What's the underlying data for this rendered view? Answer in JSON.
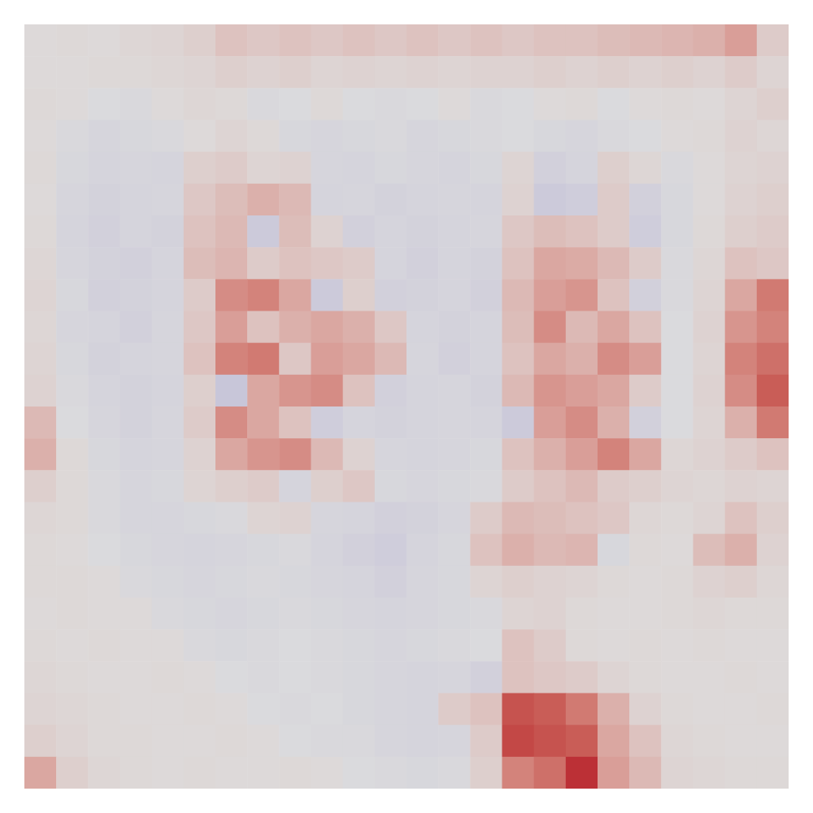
{
  "chart_data": {
    "type": "heatmap",
    "tick_labels": false,
    "color_range": [
      -1,
      1
    ],
    "cells": [
      [
        0.02,
        0.03,
        0.02,
        0.04,
        0.05,
        0.08,
        0.15,
        0.12,
        0.15,
        0.12,
        0.15,
        0.12,
        0.15,
        0.12,
        0.15,
        0.12,
        0.15,
        0.15,
        0.18,
        0.2,
        0.22,
        0.25,
        0.35,
        0.1
      ],
      [
        0.02,
        0.02,
        0.03,
        0.03,
        0.04,
        0.05,
        0.08,
        0.06,
        0.08,
        0.05,
        0.06,
        0.05,
        0.06,
        0.05,
        0.06,
        0.06,
        0.08,
        0.06,
        0.08,
        0.06,
        0.08,
        0.06,
        0.1,
        0.05
      ],
      [
        0.03,
        0.02,
        -0.02,
        -0.03,
        0.02,
        0.04,
        0.03,
        -0.03,
        -0.02,
        0.03,
        -0.02,
        -0.03,
        -0.02,
        0.02,
        -0.03,
        -0.02,
        0.02,
        0.03,
        -0.02,
        0.02,
        0.03,
        0.02,
        0.05,
        0.08
      ],
      [
        0.02,
        -0.03,
        -0.05,
        -0.04,
        -0.03,
        0.02,
        0.05,
        0.03,
        -0.04,
        -0.05,
        -0.04,
        -0.03,
        -0.05,
        -0.04,
        -0.03,
        -0.02,
        -0.04,
        -0.05,
        -0.03,
        -0.02,
        0.02,
        0.03,
        0.06,
        0.04
      ],
      [
        0.03,
        -0.04,
        -0.06,
        -0.05,
        -0.06,
        0.08,
        0.1,
        0.05,
        0.06,
        -0.05,
        -0.06,
        -0.04,
        -0.05,
        -0.06,
        -0.04,
        0.05,
        -0.08,
        -0.06,
        0.08,
        0.04,
        -0.03,
        0.02,
        0.05,
        0.06
      ],
      [
        0.02,
        -0.05,
        -0.07,
        -0.06,
        -0.05,
        0.12,
        0.18,
        0.25,
        0.2,
        -0.06,
        -0.05,
        -0.07,
        -0.06,
        -0.05,
        -0.06,
        0.06,
        -0.12,
        -0.1,
        0.1,
        -0.08,
        -0.04,
        0.02,
        0.06,
        0.08
      ],
      [
        0.03,
        -0.06,
        -0.08,
        -0.06,
        -0.07,
        0.15,
        0.2,
        -0.12,
        0.18,
        0.06,
        -0.08,
        -0.06,
        -0.07,
        -0.06,
        -0.05,
        0.12,
        0.18,
        0.15,
        0.1,
        -0.1,
        -0.04,
        0.03,
        0.08,
        0.1
      ],
      [
        0.04,
        -0.05,
        -0.07,
        -0.08,
        -0.06,
        0.18,
        0.22,
        0.1,
        0.15,
        0.12,
        0.1,
        -0.06,
        -0.08,
        -0.06,
        -0.07,
        0.15,
        0.3,
        0.28,
        0.2,
        0.1,
        -0.03,
        0.04,
        0.15,
        0.12
      ],
      [
        0.05,
        -0.04,
        -0.08,
        -0.07,
        -0.06,
        0.1,
        0.45,
        0.5,
        0.3,
        -0.12,
        0.08,
        -0.08,
        -0.07,
        -0.06,
        -0.08,
        0.2,
        0.35,
        0.4,
        0.15,
        -0.08,
        -0.03,
        0.05,
        0.3,
        0.55
      ],
      [
        0.04,
        -0.05,
        -0.06,
        -0.08,
        -0.05,
        0.12,
        0.35,
        0.15,
        0.25,
        0.3,
        0.25,
        0.12,
        -0.06,
        -0.07,
        -0.06,
        0.18,
        0.45,
        0.2,
        0.3,
        0.15,
        -0.02,
        0.06,
        0.4,
        0.5
      ],
      [
        0.05,
        -0.04,
        -0.07,
        -0.06,
        -0.05,
        0.15,
        0.5,
        0.55,
        0.12,
        0.35,
        0.3,
        0.2,
        -0.05,
        -0.08,
        -0.06,
        0.15,
        0.3,
        0.25,
        0.45,
        0.35,
        -0.02,
        0.05,
        0.5,
        0.6
      ],
      [
        0.06,
        -0.03,
        -0.06,
        -0.07,
        -0.06,
        0.08,
        -0.15,
        0.3,
        0.4,
        0.45,
        0.15,
        -0.08,
        -0.06,
        -0.05,
        -0.07,
        0.2,
        0.4,
        0.35,
        0.3,
        0.1,
        -0.02,
        0.06,
        0.45,
        0.7
      ],
      [
        0.2,
        -0.02,
        -0.05,
        -0.07,
        -0.05,
        0.1,
        0.45,
        0.3,
        0.15,
        -0.1,
        -0.06,
        -0.07,
        -0.06,
        -0.05,
        -0.06,
        -0.12,
        0.35,
        0.45,
        0.25,
        -0.08,
        -0.02,
        0.05,
        0.25,
        0.55
      ],
      [
        0.25,
        0.03,
        -0.04,
        -0.06,
        -0.05,
        0.06,
        0.3,
        0.4,
        0.45,
        0.2,
        0.06,
        -0.05,
        -0.06,
        -0.05,
        -0.04,
        0.15,
        0.25,
        0.35,
        0.5,
        0.3,
        0.04,
        0.06,
        0.1,
        0.15
      ],
      [
        0.08,
        0.03,
        -0.03,
        -0.05,
        -0.04,
        0.05,
        0.08,
        0.1,
        -0.06,
        0.08,
        0.12,
        -0.04,
        -0.05,
        -0.04,
        -0.03,
        0.1,
        0.15,
        0.2,
        0.1,
        0.08,
        0.05,
        0.04,
        0.06,
        0.05
      ],
      [
        0.04,
        0.03,
        -0.03,
        -0.05,
        -0.05,
        -0.04,
        -0.03,
        0.05,
        0.06,
        -0.05,
        -0.06,
        -0.08,
        -0.07,
        -0.05,
        0.1,
        0.2,
        0.18,
        0.15,
        0.12,
        0.04,
        0.03,
        0.05,
        0.15,
        0.08
      ],
      [
        0.03,
        0.02,
        -0.02,
        -0.04,
        -0.05,
        -0.06,
        -0.05,
        -0.04,
        -0.03,
        -0.06,
        -0.08,
        -0.1,
        -0.06,
        -0.04,
        0.15,
        0.25,
        0.2,
        0.22,
        -0.04,
        0.03,
        0.02,
        0.18,
        0.25,
        0.06
      ],
      [
        0.03,
        0.03,
        0.02,
        -0.03,
        -0.04,
        -0.05,
        -0.04,
        -0.03,
        -0.04,
        -0.05,
        -0.06,
        -0.08,
        -0.05,
        -0.04,
        0.05,
        0.08,
        0.06,
        0.05,
        0.03,
        0.02,
        0.03,
        0.06,
        0.08,
        0.04
      ],
      [
        0.02,
        0.03,
        0.02,
        0.02,
        -0.03,
        -0.04,
        -0.05,
        -0.04,
        -0.03,
        -0.04,
        -0.05,
        -0.06,
        -0.05,
        -0.04,
        -0.03,
        0.05,
        0.06,
        0.03,
        0.02,
        0.02,
        0.03,
        0.04,
        0.03,
        0.03
      ],
      [
        0.03,
        0.02,
        0.03,
        0.02,
        0.02,
        -0.03,
        -0.04,
        -0.03,
        -0.02,
        -0.03,
        -0.04,
        -0.05,
        -0.04,
        -0.03,
        -0.02,
        0.15,
        0.1,
        0.03,
        0.02,
        0.03,
        0.02,
        0.03,
        0.02,
        0.02
      ],
      [
        0.04,
        0.03,
        0.02,
        0.02,
        0.03,
        0.02,
        -0.02,
        -0.03,
        -0.02,
        -0.03,
        -0.04,
        -0.05,
        -0.06,
        -0.05,
        -0.08,
        0.15,
        0.12,
        0.1,
        0.05,
        0.03,
        0.02,
        0.02,
        0.03,
        0.02
      ],
      [
        0.05,
        0.04,
        0.03,
        0.02,
        0.02,
        0.03,
        0.02,
        -0.02,
        -0.03,
        -0.02,
        -0.04,
        -0.05,
        -0.06,
        0.1,
        0.15,
        0.75,
        0.7,
        0.55,
        0.25,
        0.06,
        0.03,
        0.02,
        0.02,
        0.03
      ],
      [
        0.08,
        0.05,
        0.03,
        0.03,
        0.02,
        0.02,
        0.03,
        0.02,
        -0.02,
        -0.03,
        -0.03,
        -0.05,
        -0.06,
        -0.05,
        0.1,
        0.8,
        0.75,
        0.7,
        0.3,
        0.15,
        0.04,
        0.03,
        0.02,
        0.02
      ],
      [
        0.3,
        0.08,
        0.04,
        0.03,
        0.02,
        0.03,
        0.02,
        0.02,
        0.03,
        0.02,
        -0.02,
        -0.03,
        -0.04,
        -0.03,
        0.08,
        0.5,
        0.6,
        0.9,
        0.35,
        0.2,
        0.05,
        0.04,
        0.03,
        0.03
      ]
    ]
  }
}
